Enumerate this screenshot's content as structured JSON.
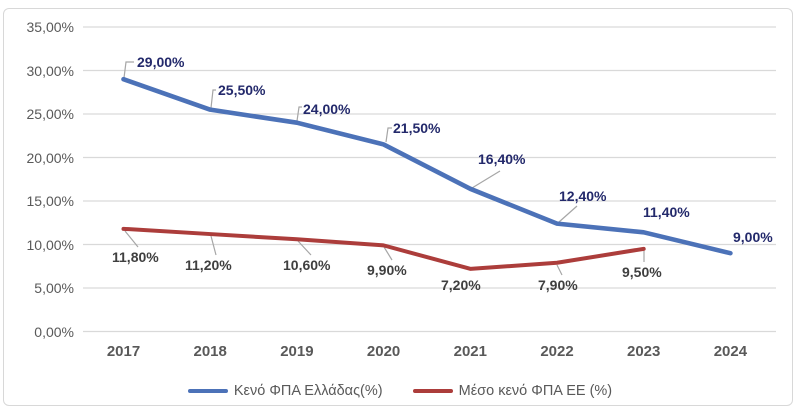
{
  "chart_data": {
    "type": "line",
    "title": "",
    "xlabel": "",
    "ylabel": "",
    "categories": [
      "2017",
      "2018",
      "2019",
      "2020",
      "2021",
      "2022",
      "2023",
      "2024"
    ],
    "series": [
      {
        "name": "Κενό ΦΠΑ Ελλάδας(%)",
        "color": "#4C72B8",
        "label_color": "#23296B",
        "values": [
          29.0,
          25.5,
          24.0,
          21.5,
          16.4,
          12.4,
          11.4,
          9.0
        ],
        "labels": [
          "29,00%",
          "25,50%",
          "24,00%",
          "21,50%",
          "16,40%",
          "12,40%",
          "11,40%",
          "9,00%"
        ]
      },
      {
        "name": "Μέσο κενό ΦΠΑ ΕΕ (%)",
        "color": "#AC3D3B",
        "label_color": "#3F3F3F",
        "values": [
          11.8,
          11.2,
          10.6,
          9.9,
          7.2,
          7.9,
          9.5,
          null
        ],
        "labels": [
          "11,80%",
          "11,20%",
          "10,60%",
          "9,90%",
          "7,20%",
          "7,90%",
          "9,50%",
          null
        ]
      }
    ],
    "y_ticks": [
      "35,00%",
      "30,00%",
      "25,00%",
      "20,00%",
      "15,00%",
      "10,00%",
      "5,00%",
      "0,00%"
    ],
    "y_tick_values": [
      35,
      30,
      25,
      20,
      15,
      10,
      5,
      0
    ],
    "ylim": [
      0,
      35
    ],
    "grid": true,
    "legend_position": "bottom"
  },
  "colors": {
    "gridline": "#D9D9D9",
    "leader_line": "#A6A6A6",
    "axis_text": "#595959",
    "chart_border": "#D8D8D8",
    "background": "#FFFFFF"
  }
}
